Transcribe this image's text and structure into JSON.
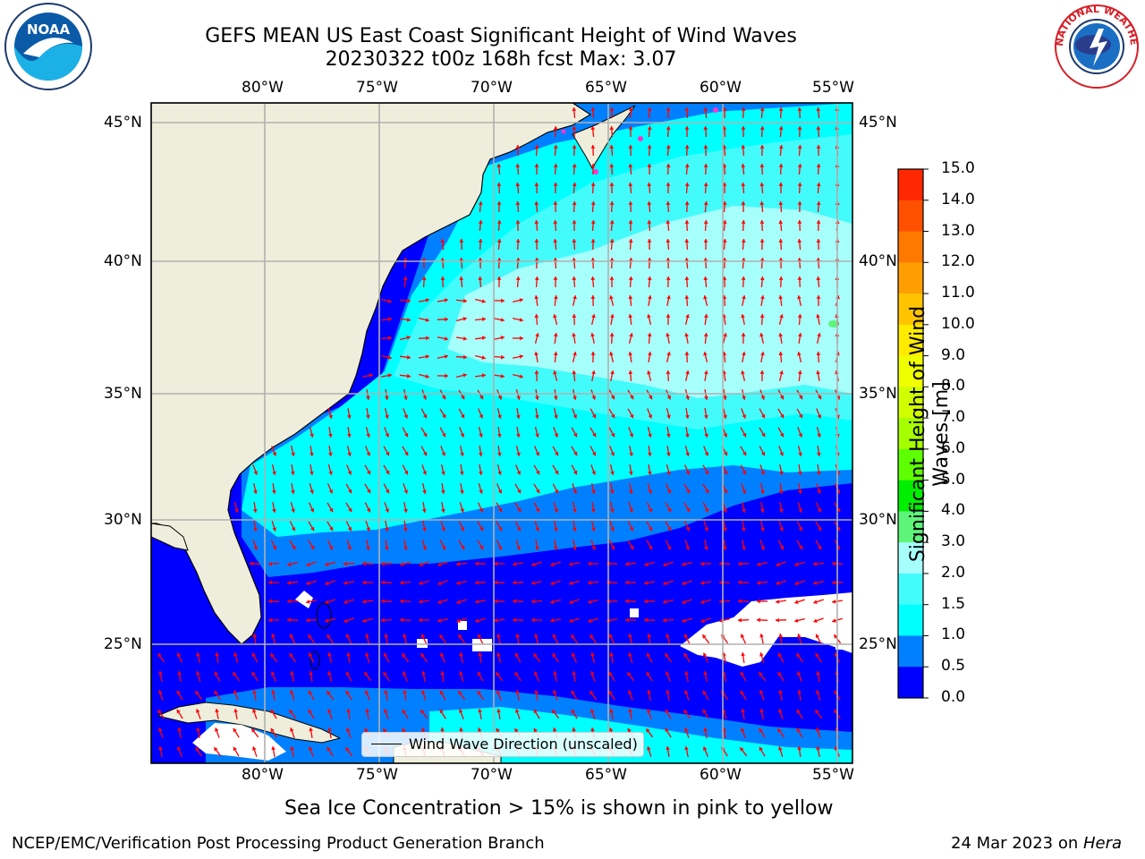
{
  "header": {
    "title_line1": "GEFS MEAN US East Coast Significant Height of Wind Waves",
    "title_line2": "20230322 t00z 168h fcst   Max: 3.07"
  },
  "logos": {
    "left": {
      "text": "NOAA",
      "icon": "noaa-logo-icon",
      "color": "#0a5aa8"
    },
    "right": {
      "text": "NATIONAL WEATHER SERVICE",
      "icon": "nws-logo-icon",
      "color": "#e4202a"
    }
  },
  "map": {
    "lon_labels_top": [
      "80°W",
      "75°W",
      "70°W",
      "65°W",
      "60°W",
      "55°W"
    ],
    "lon_labels_bottom": [
      "80°W",
      "75°W",
      "70°W",
      "65°W",
      "60°W",
      "55°W"
    ],
    "lat_labels_left": [
      "45°N",
      "40°N",
      "35°N",
      "30°N",
      "25°N"
    ],
    "lat_labels_right": [
      "45°N",
      "40°N",
      "35°N",
      "30°N",
      "25°N"
    ],
    "land_color": "#efeedc",
    "arrow_color": "#ff0000"
  },
  "legend": {
    "label": "Wind Wave Direction (unscaled)"
  },
  "colorbar": {
    "title": "Significant Height of Wind Waves [m]",
    "ticks": [
      "15.0",
      "14.0",
      "13.0",
      "12.0",
      "11.0",
      "10.0",
      "9.0",
      "8.0",
      "7.0",
      "6.0",
      "5.0",
      "4.0",
      "3.0",
      "2.0",
      "1.5",
      "1.0",
      "0.5",
      "0.0"
    ],
    "colors": [
      "#ff0000",
      "#ff2600",
      "#ff5000",
      "#ff7800",
      "#ff9e00",
      "#ffc400",
      "#ffea00",
      "#f0ff00",
      "#d2ff00",
      "#a6ff00",
      "#5eff00",
      "#00ee00",
      "#5cf57a",
      "#a6fffb",
      "#44fbfb",
      "#00ffff",
      "#0080ff",
      "#0000ff"
    ]
  },
  "caption": "Sea Ice Concentration > 15% is shown in pink to yellow",
  "footer": {
    "left": "NCEP/EMC/Verification Post Processing Product Generation Branch",
    "right_date": "24 Mar 2023 on ",
    "right_machine": "Hera"
  }
}
